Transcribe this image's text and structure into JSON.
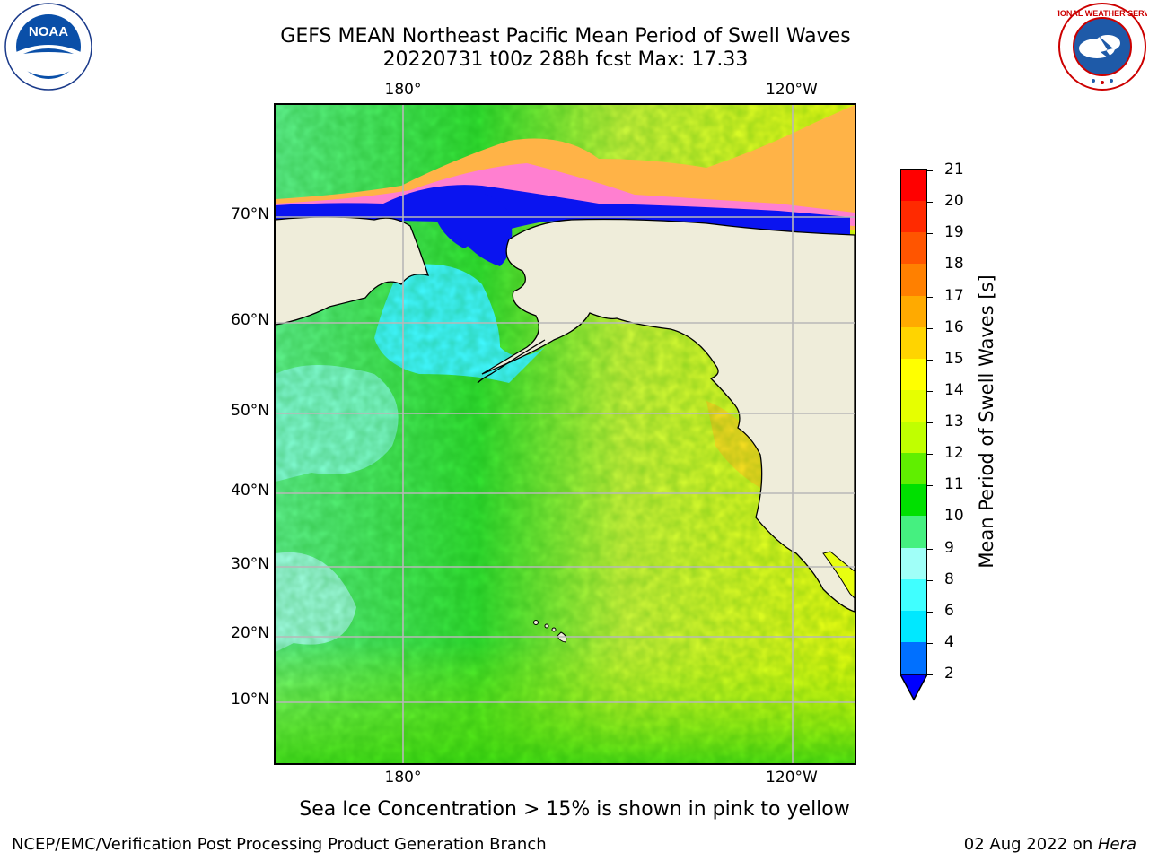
{
  "title": {
    "line1": "GEFS MEAN Northeast Pacific Mean Period of Swell Waves",
    "line2": "20220731 t00z 288h fcst   Max: 17.33"
  },
  "logos": {
    "left": "noaa-logo",
    "left_text": "NOAA",
    "right": "nws-logo",
    "right_text": "NATIONAL WEATHER SERVICE"
  },
  "map": {
    "lon_ticks": [
      "180°",
      "120°W"
    ],
    "lat_ticks": [
      "70°N",
      "60°N",
      "50°N",
      "40°N",
      "30°N",
      "20°N",
      "10°N"
    ],
    "colors": {
      "land": "#efedda",
      "ice_pink": "#ff7fd0",
      "ice_orange": "#ffb347"
    }
  },
  "colorbar": {
    "label": "Mean Period of Swell Waves [s]",
    "ticks": [
      "21",
      "20",
      "19",
      "18",
      "17",
      "16",
      "15",
      "14",
      "13",
      "12",
      "11",
      "10",
      "9",
      "8",
      "6",
      "4",
      "2"
    ],
    "colors_top_to_bottom": [
      "#ff0000",
      "#ff2a00",
      "#ff5500",
      "#ff8000",
      "#ffaa00",
      "#ffd400",
      "#ffff00",
      "#e6ff00",
      "#c0ff00",
      "#60ef00",
      "#00e000",
      "#45f080",
      "#a0fff8",
      "#40ffff",
      "#00e8ff",
      "#0070ff"
    ],
    "extend_color": "#0000ff"
  },
  "note": "Sea Ice Concentration > 15% is shown in pink to yellow",
  "footer": {
    "left": "NCEP/EMC/Verification Post Processing Product Generation Branch",
    "right_date": "02 Aug 2022 on ",
    "right_host": "Hera"
  }
}
